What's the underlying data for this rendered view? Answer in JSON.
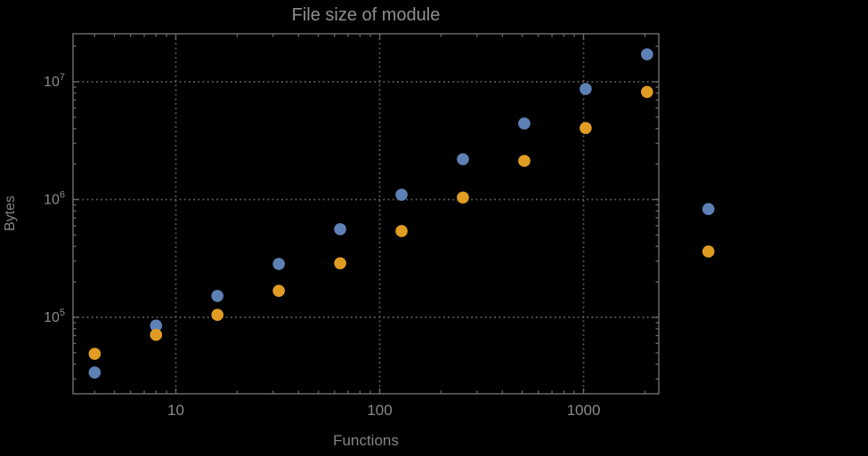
{
  "colors": {
    "background": "#000000",
    "frame": "#696969",
    "grid": "#5e5e5e",
    "tick_labels": "#8a8a8a",
    "axis_label_text": "#848484",
    "title_text": "#8f8f8f",
    "series_blue": "#5E81B5",
    "series_orange": "#E19C24"
  },
  "chart_data": {
    "type": "scatter",
    "title": "File size of module",
    "xlabel": "Functions",
    "ylabel": "Bytes",
    "x_scale": "log",
    "y_scale": "log",
    "grid": "dotted, at decade gridlines only",
    "legend": "none",
    "x": [
      4,
      8,
      16,
      32,
      64,
      128,
      256,
      512,
      1024,
      2048,
      4096
    ],
    "series": [
      {
        "name": "blue",
        "color": "#5E81B5",
        "values": [
          34000,
          85000,
          152000,
          284000,
          560000,
          1100000,
          2200000,
          4420000,
          8700000,
          17100000,
          830000
        ]
      },
      {
        "name": "orange",
        "color": "#E19C24",
        "values": [
          49000,
          71000,
          105000,
          168000,
          288000,
          540000,
          1040000,
          2130000,
          4050000,
          8200000,
          362000
        ]
      }
    ],
    "x_ticks": [
      {
        "value": 10,
        "label": "10"
      },
      {
        "value": 100,
        "label": "100"
      },
      {
        "value": 1000,
        "label": "1000"
      }
    ],
    "y_ticks": [
      {
        "value": 100000,
        "base": "10",
        "exp": "5"
      },
      {
        "value": 1000000,
        "base": "10",
        "exp": "6"
      },
      {
        "value": 10000000,
        "base": "10",
        "exp": "7"
      }
    ],
    "xlim_note": "frame spans ~3.1 to ~2350; points at x=4096 plot outside the right frame edge",
    "ylim_note": "frame spans ~2.2e4 to ~2.6e7"
  }
}
